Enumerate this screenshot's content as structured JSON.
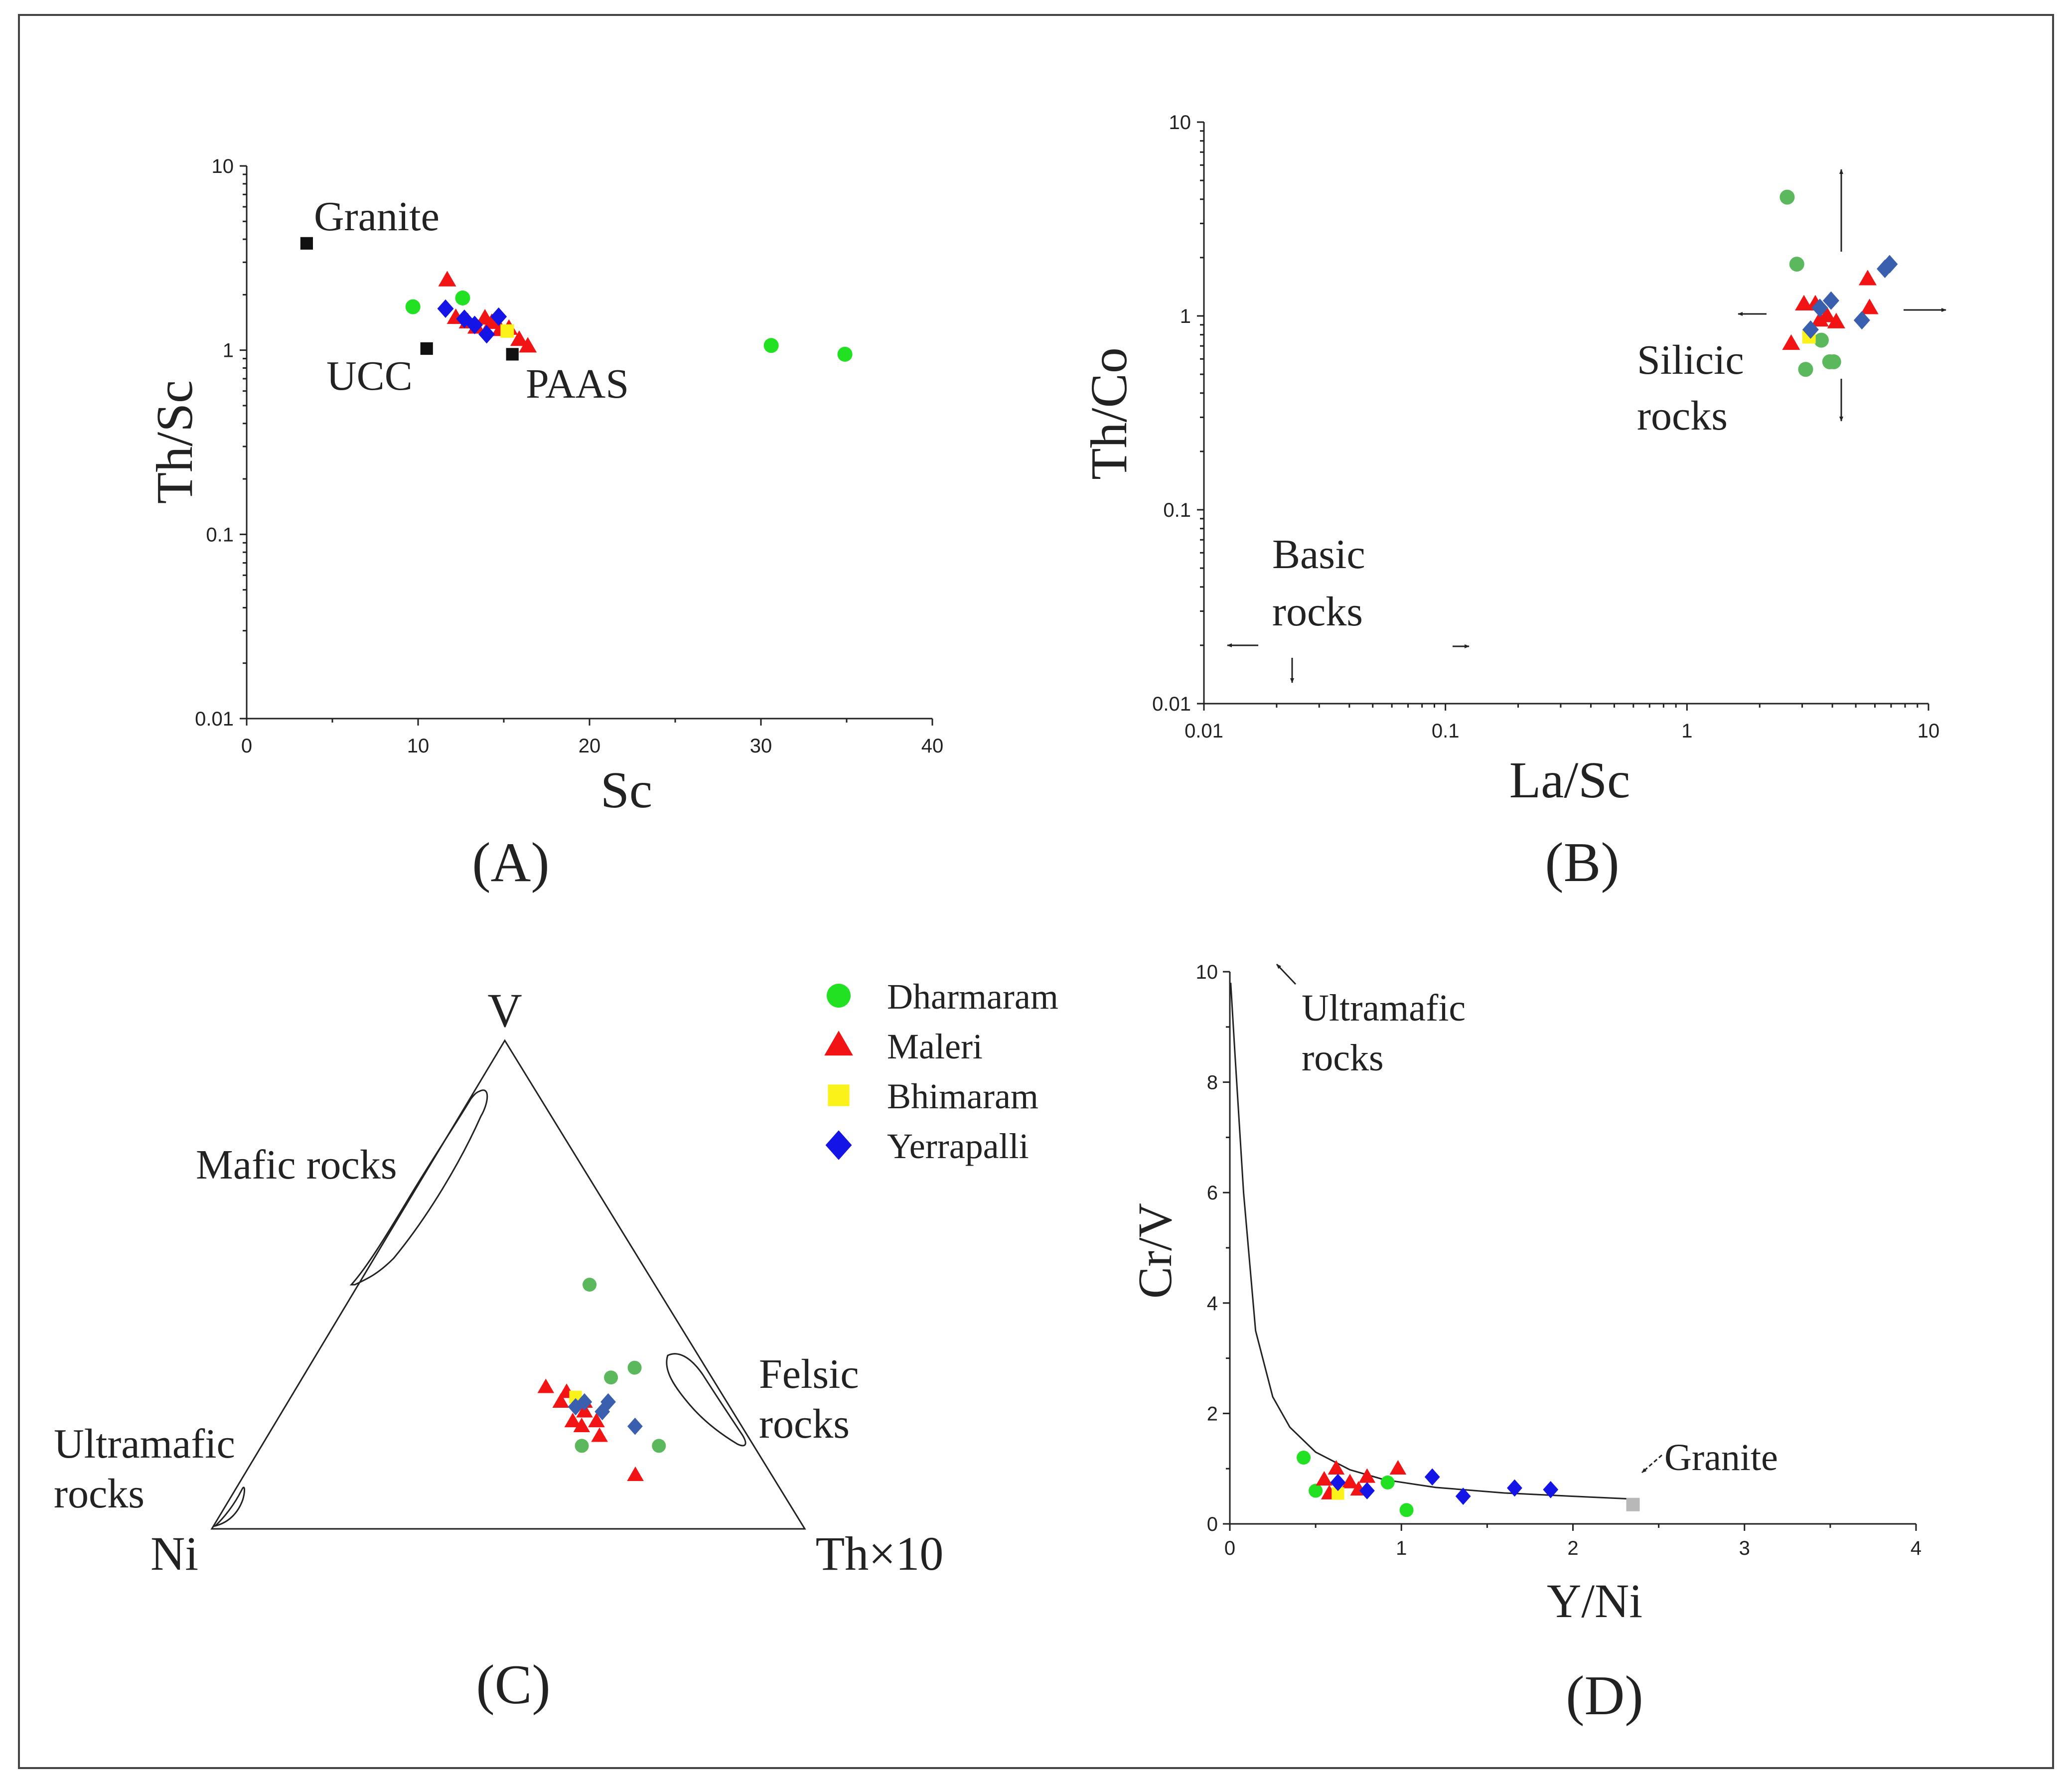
{
  "colors": {
    "dharmaram": "#22e022",
    "dharmaram_alt": "#5cb85c",
    "maleri": "#f21414",
    "bhimaram": "#fbf21a",
    "yerrapalli": "#1414e6",
    "yerrapalli_alt": "#3a5fae",
    "reference": "#111111",
    "granite_d": "#b8b8b8"
  },
  "legend": {
    "items": [
      {
        "label": "Dharmaram",
        "shape": "circle",
        "color": "#22e022"
      },
      {
        "label": "Maleri",
        "shape": "triangle",
        "color": "#f21414"
      },
      {
        "label": "Bhimaram",
        "shape": "square",
        "color": "#fbf21a"
      },
      {
        "label": "Yerrapalli",
        "shape": "diamond",
        "color": "#1414e6"
      }
    ]
  },
  "chart_data": [
    {
      "panel": "(A)",
      "type": "scatter",
      "xlabel": "Sc",
      "ylabel": "Th/Sc",
      "xlim": [
        0,
        40
      ],
      "ylim": [
        0.01,
        10
      ],
      "yscale": "log",
      "x_ticks": [
        "0",
        "10",
        "20",
        "30",
        "40"
      ],
      "y_ticks": [
        "0.01",
        "0.1",
        "1",
        "10"
      ],
      "references": [
        {
          "label": "Granite",
          "x": 3.5,
          "y": 3.8
        },
        {
          "label": "UCC",
          "x": 10.5,
          "y": 1.02
        },
        {
          "label": "PAAS",
          "x": 15.5,
          "y": 0.95
        }
      ],
      "series": [
        {
          "name": "Dharmaram",
          "points": [
            [
              9.7,
              1.72
            ],
            [
              12.6,
              1.92
            ],
            [
              30.6,
              1.06
            ],
            [
              34.9,
              0.95
            ]
          ]
        },
        {
          "name": "Maleri",
          "points": [
            [
              11.7,
              2.4
            ],
            [
              12.2,
              1.5
            ],
            [
              12.9,
              1.42
            ],
            [
              13.4,
              1.33
            ],
            [
              13.9,
              1.49
            ],
            [
              14.3,
              1.41
            ],
            [
              14.8,
              1.29
            ],
            [
              15.3,
              1.31
            ],
            [
              15.9,
              1.14
            ],
            [
              16.4,
              1.05
            ]
          ]
        },
        {
          "name": "Bhimaram",
          "points": [
            [
              15.2,
              1.27
            ]
          ]
        },
        {
          "name": "Yerrapalli",
          "points": [
            [
              11.6,
              1.68
            ],
            [
              12.7,
              1.48
            ],
            [
              13.3,
              1.37
            ],
            [
              14.0,
              1.22
            ],
            [
              14.7,
              1.52
            ]
          ]
        }
      ]
    },
    {
      "panel": "(B)",
      "type": "scatter",
      "xlabel": "La/Sc",
      "ylabel": "Th/Co",
      "xlim": [
        0.01,
        10
      ],
      "ylim": [
        0.01,
        10
      ],
      "xscale": "log",
      "yscale": "log",
      "x_ticks": [
        "0.01",
        "0.1",
        "1",
        "10"
      ],
      "y_ticks": [
        "0.01",
        "0.1",
        "1",
        "10"
      ],
      "regions": [
        {
          "label_lines": [
            "Silicic",
            "rocks"
          ]
        },
        {
          "label_lines": [
            "Basic",
            "rocks"
          ]
        }
      ],
      "series": [
        {
          "name": "Dharmaram",
          "points": [
            [
              2.6,
              4.1
            ],
            [
              2.85,
              1.85
            ],
            [
              3.1,
              0.53
            ],
            [
              3.6,
              0.75
            ],
            [
              3.9,
              0.58
            ],
            [
              4.05,
              0.58
            ]
          ]
        },
        {
          "name": "Maleri",
          "points": [
            [
              2.7,
              0.72
            ],
            [
              3.05,
              1.15
            ],
            [
              3.4,
              1.15
            ],
            [
              3.55,
              0.95
            ],
            [
              3.8,
              1.0
            ],
            [
              4.15,
              0.93
            ],
            [
              5.6,
              1.55
            ],
            [
              5.7,
              1.1
            ]
          ]
        },
        {
          "name": "Bhimaram",
          "points": [
            [
              3.2,
              0.78
            ]
          ]
        },
        {
          "name": "Yerrapalli",
          "points": [
            [
              3.25,
              0.85
            ],
            [
              3.55,
              1.1
            ],
            [
              3.95,
              1.2
            ],
            [
              5.3,
              0.95
            ],
            [
              6.6,
              1.75
            ],
            [
              6.9,
              1.85
            ]
          ]
        }
      ]
    },
    {
      "panel": "(C)",
      "type": "ternary",
      "vertices": {
        "top": "V",
        "left": "Ni",
        "right": "Th×10"
      },
      "fields": [
        {
          "label": "Mafic rocks"
        },
        {
          "label_lines": [
            "Felsic",
            "rocks"
          ]
        },
        {
          "label_lines": [
            "Ultramafic",
            "rocks"
          ]
        }
      ],
      "series": [
        {
          "name": "Dharmaram",
          "points": [
            [
              0.5,
              0.11,
              0.39
            ],
            [
              0.31,
              0.17,
              0.52
            ],
            [
              0.17,
              0.29,
              0.54
            ],
            [
              0.17,
              0.16,
              0.67
            ],
            [
              0.33,
              0.12,
              0.55
            ]
          ]
        },
        {
          "name": "Maleri",
          "points": [
            [
              0.29,
              0.29,
              0.42
            ],
            [
              0.26,
              0.28,
              0.46
            ],
            [
              0.28,
              0.26,
              0.46
            ],
            [
              0.22,
              0.28,
              0.5
            ],
            [
              0.24,
              0.25,
              0.51
            ],
            [
              0.22,
              0.24,
              0.54
            ],
            [
              0.21,
              0.27,
              0.52
            ],
            [
              0.19,
              0.25,
              0.56
            ],
            [
              0.26,
              0.24,
              0.5
            ],
            [
              0.11,
              0.23,
              0.66
            ]
          ]
        },
        {
          "name": "Bhimaram",
          "points": [
            [
              0.27,
              0.25,
              0.48
            ]
          ]
        },
        {
          "name": "Yerrapalli",
          "points": [
            [
              0.25,
              0.26,
              0.49
            ],
            [
              0.24,
              0.22,
              0.54
            ],
            [
              0.26,
              0.2,
              0.54
            ],
            [
              0.21,
              0.18,
              0.61
            ],
            [
              0.26,
              0.24,
              0.5
            ]
          ]
        }
      ]
    },
    {
      "panel": "(D)",
      "type": "scatter",
      "xlabel": "Y/Ni",
      "ylabel": "Cr/V",
      "xlim": [
        0,
        4
      ],
      "ylim": [
        0,
        10
      ],
      "x_ticks": [
        "0",
        "1",
        "2",
        "3",
        "4"
      ],
      "y_ticks": [
        "0",
        "2",
        "4",
        "6",
        "8",
        "10"
      ],
      "curve": [
        [
          0.005,
          9.8
        ],
        [
          0.03,
          8.5
        ],
        [
          0.08,
          6.0
        ],
        [
          0.15,
          3.5
        ],
        [
          0.25,
          2.3
        ],
        [
          0.35,
          1.75
        ],
        [
          0.5,
          1.3
        ],
        [
          0.7,
          0.98
        ],
        [
          0.9,
          0.8
        ],
        [
          1.2,
          0.66
        ],
        [
          1.6,
          0.56
        ],
        [
          2.0,
          0.5
        ],
        [
          2.35,
          0.45
        ]
      ],
      "annotations": [
        {
          "label_lines": [
            "Ultramafic",
            "rocks"
          ]
        },
        {
          "label": "Granite",
          "x": 2.35,
          "y": 0.35
        }
      ],
      "series": [
        {
          "name": "Dharmaram",
          "points": [
            [
              0.43,
              1.2
            ],
            [
              0.5,
              0.6
            ],
            [
              0.92,
              0.75
            ],
            [
              1.03,
              0.25
            ]
          ]
        },
        {
          "name": "Maleri",
          "points": [
            [
              0.55,
              0.8
            ],
            [
              0.58,
              0.55
            ],
            [
              0.62,
              1.0
            ],
            [
              0.7,
              0.75
            ],
            [
              0.8,
              0.85
            ],
            [
              0.98,
              1.0
            ],
            [
              0.75,
              0.62
            ]
          ]
        },
        {
          "name": "Bhimaram",
          "points": [
            [
              0.63,
              0.55
            ]
          ]
        },
        {
          "name": "Yerrapalli",
          "points": [
            [
              0.63,
              0.75
            ],
            [
              0.8,
              0.6
            ],
            [
              1.18,
              0.85
            ],
            [
              1.36,
              0.5
            ],
            [
              1.66,
              0.65
            ],
            [
              1.87,
              0.62
            ]
          ]
        }
      ]
    }
  ]
}
